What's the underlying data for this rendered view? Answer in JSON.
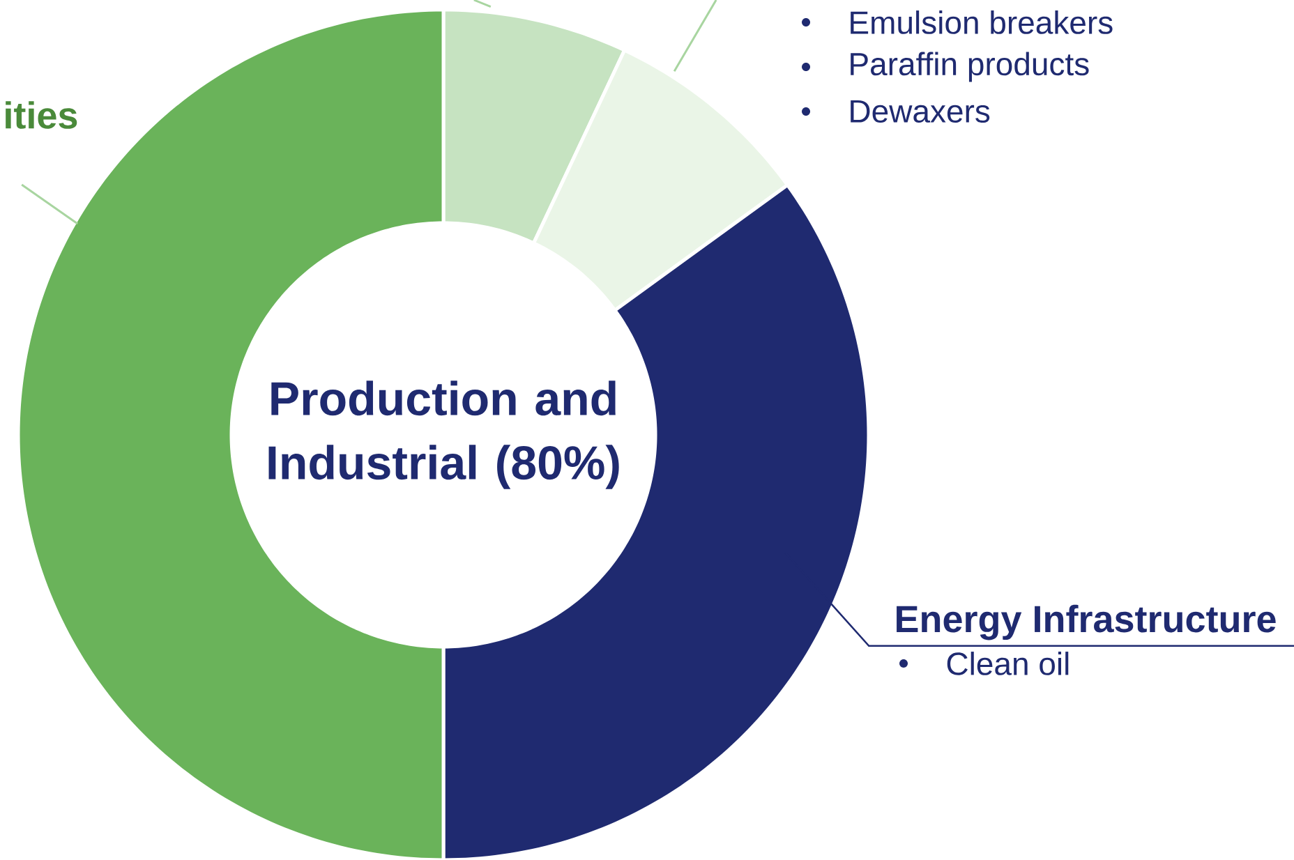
{
  "chart_data": {
    "type": "donut",
    "title": "Production and Industrial (80%)",
    "categories": [
      null,
      null,
      "Energy Infrastructure",
      "ities"
    ],
    "values": [
      7,
      8,
      35,
      50
    ],
    "colors": [
      "#c6e3c1",
      "#eaf5e7",
      "#1f2a70",
      "#6ab35a"
    ],
    "annotations": [
      "Emulsion breakers",
      "Paraffin products",
      "Dewaxers",
      "Clean oil"
    ]
  }
}
